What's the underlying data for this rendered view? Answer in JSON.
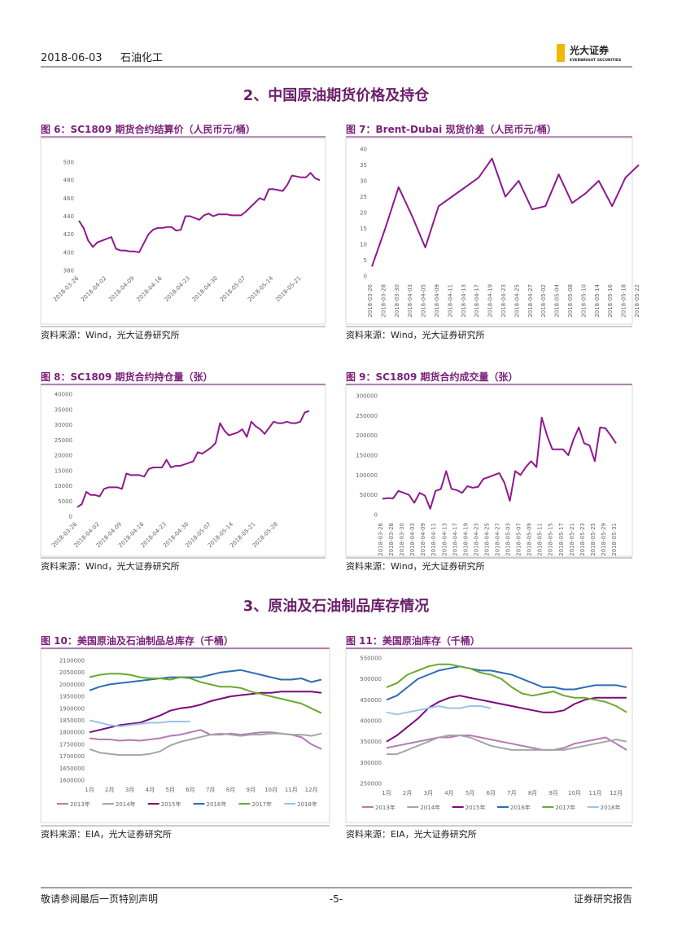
{
  "header": {
    "date": "2018-06-03",
    "industry": "石油化工",
    "logo_cn": "光大证券",
    "logo_en": "EVERBRIGHT SECURITIES"
  },
  "sections": [
    "2、中国原油期货价格及持仓",
    "3、原油及石油制品库存情况"
  ],
  "chart_data": [
    {
      "type": "line",
      "title": "图 6：SC1809 期货合约结算价（人民币元/桶）",
      "source": "资料来源：Wind，光大证券研究所",
      "color": "#8e1a8e",
      "grid": false,
      "categories": [
        "2018-03-26",
        null,
        null,
        null,
        null,
        null,
        "2018-04-02",
        null,
        null,
        null,
        null,
        null,
        "2018-04-09",
        null,
        null,
        null,
        null,
        null,
        "2018-04-16",
        null,
        null,
        null,
        null,
        null,
        "2018-04-23",
        null,
        null,
        null,
        null,
        null,
        "2018-04-30",
        null,
        null,
        null,
        null,
        null,
        "2018-05-07",
        null,
        null,
        null,
        null,
        null,
        "2018-05-14",
        null,
        null,
        null,
        null,
        null,
        "2018-05-21",
        null,
        null,
        null,
        null
      ],
      "values": [
        435,
        427,
        413,
        406,
        411,
        413,
        415,
        417,
        404,
        402,
        402,
        401,
        401,
        400,
        410,
        420,
        425,
        427,
        427,
        428,
        428,
        424,
        425,
        440,
        440,
        438,
        436,
        441,
        443,
        440,
        442,
        442,
        442,
        441,
        441,
        441,
        445,
        450,
        455,
        460,
        458,
        470,
        470,
        469,
        468,
        475,
        485,
        484,
        483,
        483,
        488,
        482,
        480
      ],
      "ylim": [
        380,
        500
      ],
      "yticks": [
        380,
        400,
        420,
        440,
        460,
        480,
        500
      ]
    },
    {
      "type": "line",
      "title": "图 7：Brent-Dubai 现货价差（人民币元/桶）",
      "source": "资料来源：Wind，光大证券研究所",
      "color": "#8e1a8e",
      "grid": false,
      "categories": [
        "2018-03-26",
        "2018-03-28",
        "2018-03-30",
        "2018-04-03",
        "2018-04-05",
        "2018-04-09",
        "2018-04-11",
        "2018-04-13",
        "2018-04-17",
        "2018-04-19",
        "2018-04-23",
        "2018-04-25",
        "2018-04-27",
        "2018-05-02",
        "2018-05-04",
        "2018-05-08",
        "2018-05-10",
        "2018-05-14",
        "2018-05-16",
        "2018-05-18",
        "2018-05-22"
      ],
      "values": [
        3,
        15,
        28,
        19,
        9,
        22,
        25,
        28,
        31,
        37,
        25,
        30,
        21,
        22,
        32,
        23,
        26,
        30,
        22,
        31,
        35
      ],
      "ylim": [
        0,
        40
      ],
      "yticks": [
        0,
        5,
        10,
        15,
        20,
        25,
        30,
        35,
        40
      ]
    },
    {
      "type": "line",
      "title": "图 8：SC1809 期货合约持仓量（张）",
      "source": "资料来源：Wind，光大证券研究所",
      "color": "#8e1a8e",
      "grid": false,
      "categories": [
        "2018-03-26",
        null,
        null,
        null,
        null,
        "2018-04-02",
        null,
        null,
        null,
        null,
        "2018-04-09",
        null,
        null,
        null,
        null,
        "2018-04-16",
        null,
        null,
        null,
        null,
        "2018-04-23",
        null,
        null,
        null,
        null,
        "2018-04-30",
        null,
        null,
        null,
        null,
        "2018-05-07",
        null,
        null,
        null,
        null,
        "2018-05-14",
        null,
        null,
        null,
        null,
        "2018-05-21",
        null,
        null,
        null,
        null,
        "2018-05-28",
        null,
        null,
        null,
        null,
        null,
        null,
        null
      ],
      "values": [
        3000,
        4000,
        8000,
        7000,
        7000,
        6500,
        9000,
        9500,
        9500,
        9500,
        9000,
        14000,
        13500,
        13500,
        13500,
        13000,
        15500,
        16000,
        16000,
        16000,
        18500,
        16000,
        16500,
        16500,
        17000,
        17500,
        18000,
        21000,
        20500,
        21500,
        22500,
        24000,
        30500,
        28000,
        26500,
        27000,
        27500,
        28500,
        26000,
        31000,
        29500,
        28500,
        27000,
        29000,
        31000,
        30500,
        30500,
        31000,
        30500,
        30500,
        31000,
        34000,
        34500
      ],
      "ylim": [
        0,
        40000
      ],
      "yticks": [
        0,
        5000,
        10000,
        15000,
        20000,
        25000,
        30000,
        35000,
        40000
      ]
    },
    {
      "type": "line",
      "title": "图 9：SC1809 期货合约成交量（张）",
      "source": "资料来源：Wind，光大证券研究所",
      "color": "#8e1a8e",
      "grid": false,
      "categories": [
        "2018-03-26",
        null,
        "2018-03-28",
        null,
        "2018-03-30",
        null,
        "2018-04-03",
        null,
        "2018-04-09",
        null,
        "2018-04-11",
        null,
        "2018-04-13",
        null,
        "2018-04-17",
        null,
        "2018-04-19",
        null,
        "2018-04-23",
        null,
        "2018-04-25",
        null,
        "2018-04-27",
        null,
        "2018-05-03",
        null,
        "2018-05-07",
        null,
        "2018-05-09",
        null,
        "2018-05-11",
        null,
        "2018-05-15",
        null,
        "2018-05-17",
        null,
        "2018-05-21",
        null,
        "2018-05-23",
        null,
        "2018-05-25",
        null,
        "2018-05-29",
        null,
        "2018-05-31"
      ],
      "values": [
        40000,
        42000,
        41000,
        60000,
        55000,
        50000,
        30000,
        55000,
        48000,
        15000,
        60000,
        65000,
        110000,
        65000,
        62000,
        55000,
        72000,
        68000,
        70000,
        90000,
        95000,
        100000,
        105000,
        80000,
        35000,
        110000,
        100000,
        120000,
        135000,
        120000,
        245000,
        200000,
        165000,
        165000,
        165000,
        150000,
        190000,
        220000,
        180000,
        175000,
        135000,
        220000,
        218000,
        200000,
        180000
      ],
      "ylim": [
        0,
        300000
      ],
      "yticks": [
        0,
        50000,
        100000,
        150000,
        200000,
        250000,
        300000
      ]
    },
    {
      "type": "line",
      "title": "图 10：美国原油及石油制品总库存（千桶）",
      "source": "资料来源：EIA，光大证券研究所",
      "grid": false,
      "legend": "bottom",
      "categories": [
        "1月",
        null,
        "2月",
        null,
        "3月",
        null,
        "4月",
        null,
        "5月",
        null,
        "6月",
        null,
        "7月",
        null,
        "8月",
        null,
        "9月",
        null,
        "10月",
        null,
        "11月",
        null,
        "12月",
        null
      ],
      "series": [
        {
          "name": "2013年",
          "color": "#b57ab5",
          "values": [
            1775000,
            1770000,
            1770000,
            1765000,
            1768000,
            1765000,
            1770000,
            1775000,
            1785000,
            1790000,
            1800000,
            1810000,
            1790000,
            1790000,
            1795000,
            1790000,
            1795000,
            1800000,
            1800000,
            1795000,
            1790000,
            1780000,
            1750000,
            1730000
          ]
        },
        {
          "name": "2014年",
          "color": "#a6a6a6",
          "values": [
            1730000,
            1715000,
            1710000,
            1705000,
            1705000,
            1705000,
            1710000,
            1720000,
            1745000,
            1760000,
            1770000,
            1780000,
            1790000,
            1795000,
            1790000,
            1785000,
            1790000,
            1790000,
            1795000,
            1795000,
            1790000,
            1790000,
            1785000,
            1795000
          ]
        },
        {
          "name": "2015年",
          "color": "#7b0a7b",
          "values": [
            1800000,
            1810000,
            1820000,
            1830000,
            1835000,
            1840000,
            1855000,
            1870000,
            1890000,
            1900000,
            1905000,
            1915000,
            1930000,
            1940000,
            1950000,
            1955000,
            1960000,
            1965000,
            1965000,
            1970000,
            1970000,
            1970000,
            1970000,
            1965000
          ]
        },
        {
          "name": "2016年",
          "color": "#2e6db4",
          "values": [
            1975000,
            1990000,
            2000000,
            2005000,
            2010000,
            2015000,
            2020000,
            2025000,
            2030000,
            2030000,
            2030000,
            2030000,
            2040000,
            2050000,
            2055000,
            2060000,
            2050000,
            2040000,
            2030000,
            2020000,
            2020000,
            2025000,
            2010000,
            2020000
          ]
        },
        {
          "name": "2017年",
          "color": "#6aaa2e",
          "values": [
            2030000,
            2040000,
            2045000,
            2045000,
            2040000,
            2030000,
            2025000,
            2025000,
            2020000,
            2030000,
            2025000,
            2010000,
            2000000,
            1990000,
            1990000,
            1985000,
            1970000,
            1960000,
            1950000,
            1940000,
            1930000,
            1920000,
            1900000,
            1880000
          ]
        },
        {
          "name": "2018年",
          "color": "#9dc3e6",
          "values": [
            1850000,
            1840000,
            1830000,
            1825000,
            1830000,
            1835000,
            1840000,
            1840000,
            1845000,
            1845000,
            1845000,
            null,
            null,
            null,
            null,
            null,
            null,
            null,
            null,
            null,
            null,
            null,
            null,
            null
          ]
        }
      ],
      "ylim": [
        1600000,
        2100000
      ],
      "yticks": [
        1600000,
        1650000,
        1700000,
        1750000,
        1800000,
        1850000,
        1900000,
        1950000,
        2000000,
        2050000,
        2100000
      ]
    },
    {
      "type": "line",
      "title": "图 11：美国原油库存（千桶）",
      "source": "资料来源：EIA，光大证券研究所",
      "grid": false,
      "legend": "bottom",
      "categories": [
        "1月",
        null,
        "2月",
        null,
        "3月",
        null,
        "4月",
        null,
        "5月",
        null,
        "6月",
        null,
        "7月",
        null,
        "8月",
        null,
        "9月",
        null,
        "10月",
        null,
        "11月",
        null,
        "12月",
        null
      ],
      "series": [
        {
          "name": "2013年",
          "color": "#b57ab5",
          "values": [
            335000,
            340000,
            345000,
            350000,
            355000,
            360000,
            360000,
            365000,
            365000,
            360000,
            355000,
            350000,
            345000,
            340000,
            335000,
            330000,
            330000,
            335000,
            345000,
            350000,
            355000,
            360000,
            345000,
            330000
          ]
        },
        {
          "name": "2014年",
          "color": "#a6a6a6",
          "values": [
            320000,
            320000,
            330000,
            340000,
            350000,
            360000,
            365000,
            365000,
            360000,
            350000,
            340000,
            335000,
            330000,
            330000,
            330000,
            330000,
            330000,
            330000,
            335000,
            340000,
            345000,
            350000,
            355000,
            350000
          ]
        },
        {
          "name": "2015年",
          "color": "#7b0a7b",
          "values": [
            350000,
            365000,
            385000,
            405000,
            430000,
            445000,
            455000,
            460000,
            455000,
            450000,
            445000,
            440000,
            435000,
            430000,
            425000,
            420000,
            420000,
            425000,
            440000,
            450000,
            455000,
            455000,
            455000,
            455000
          ]
        },
        {
          "name": "2016年",
          "color": "#2e6db4",
          "values": [
            450000,
            460000,
            480000,
            500000,
            510000,
            520000,
            525000,
            530000,
            525000,
            520000,
            520000,
            515000,
            510000,
            500000,
            490000,
            480000,
            480000,
            475000,
            475000,
            480000,
            485000,
            485000,
            485000,
            480000
          ]
        },
        {
          "name": "2017年",
          "color": "#6aaa2e",
          "values": [
            480000,
            490000,
            510000,
            520000,
            530000,
            535000,
            535000,
            530000,
            525000,
            515000,
            510000,
            500000,
            480000,
            465000,
            460000,
            465000,
            470000,
            460000,
            455000,
            455000,
            450000,
            445000,
            435000,
            420000
          ]
        },
        {
          "name": "2018年",
          "color": "#9dc3e6",
          "values": [
            420000,
            415000,
            420000,
            425000,
            430000,
            435000,
            430000,
            430000,
            435000,
            435000,
            430000,
            null,
            null,
            null,
            null,
            null,
            null,
            null,
            null,
            null,
            null,
            null,
            null,
            null
          ]
        }
      ],
      "ylim": [
        250000,
        550000
      ],
      "yticks": [
        250000,
        300000,
        350000,
        400000,
        450000,
        500000,
        550000
      ]
    }
  ],
  "footer": {
    "disclaimer": "敬请参阅最后一页特别声明",
    "page": "-5-",
    "report": "证券研究报告"
  }
}
